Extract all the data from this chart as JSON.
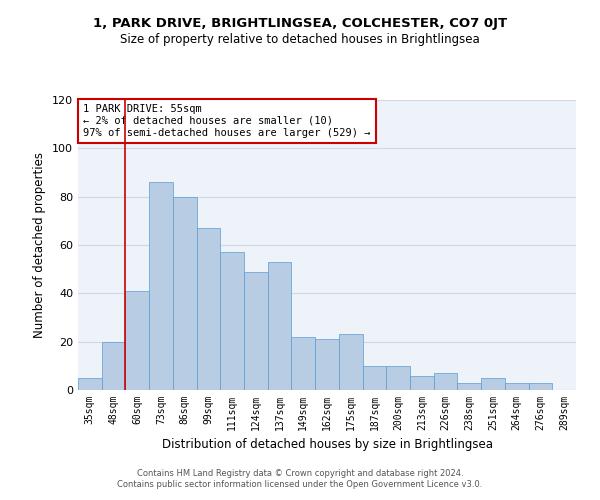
{
  "title1": "1, PARK DRIVE, BRIGHTLINGSEA, COLCHESTER, CO7 0JT",
  "title2": "Size of property relative to detached houses in Brightlingsea",
  "xlabel": "Distribution of detached houses by size in Brightlingsea",
  "ylabel": "Number of detached properties",
  "categories": [
    "35sqm",
    "48sqm",
    "60sqm",
    "73sqm",
    "86sqm",
    "99sqm",
    "111sqm",
    "124sqm",
    "137sqm",
    "149sqm",
    "162sqm",
    "175sqm",
    "187sqm",
    "200sqm",
    "213sqm",
    "226sqm",
    "238sqm",
    "251sqm",
    "264sqm",
    "276sqm",
    "289sqm"
  ],
  "values": [
    5,
    20,
    41,
    86,
    80,
    67,
    57,
    49,
    53,
    22,
    21,
    23,
    10,
    10,
    6,
    7,
    3,
    5,
    3,
    3,
    0
  ],
  "bar_color": "#b8cce4",
  "bar_edge_color": "#5b9bd5",
  "grid_color": "#d0d8e8",
  "background_color": "#eef2f9",
  "annotation_text": "1 PARK DRIVE: 55sqm\n← 2% of detached houses are smaller (10)\n97% of semi-detached houses are larger (529) →",
  "annotation_box_color": "#ffffff",
  "annotation_box_edge": "#cc0000",
  "red_line_x": 1.5,
  "ylim": [
    0,
    120
  ],
  "footer1": "Contains HM Land Registry data © Crown copyright and database right 2024.",
  "footer2": "Contains public sector information licensed under the Open Government Licence v3.0."
}
